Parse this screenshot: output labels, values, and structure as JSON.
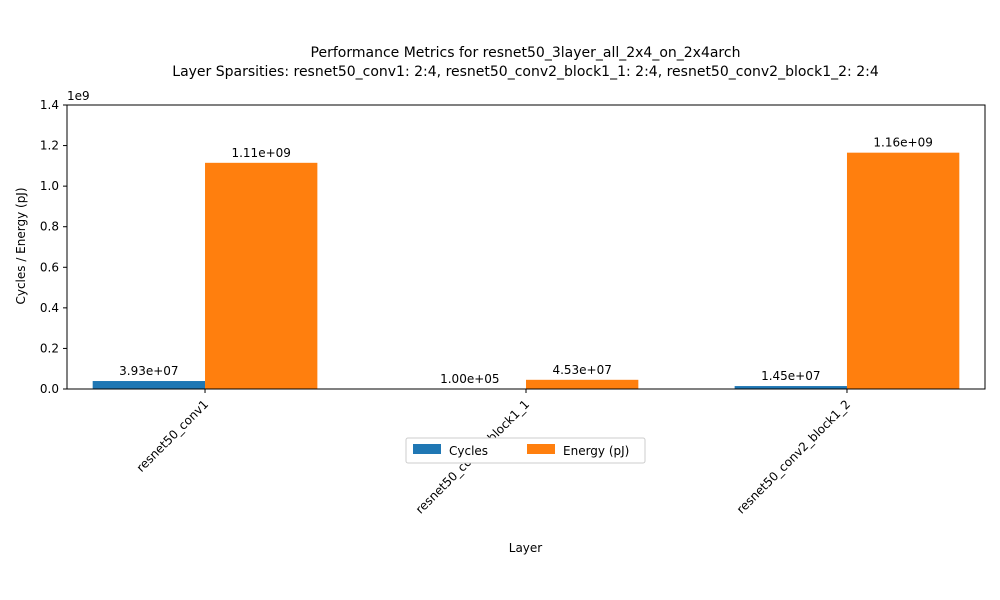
{
  "chart_data": {
    "type": "bar",
    "title": "Performance Metrics for resnet50_3layer_all_2x4_on_2x4arch",
    "subtitle": "Layer Sparsities: resnet50_conv1: 2:4, resnet50_conv2_block1_1: 2:4, resnet50_conv2_block1_2: 2:4",
    "xlabel": "Layer",
    "ylabel": "Cycles / Energy (pJ)",
    "offset_label": "1e9",
    "ylim": [
      0,
      1.4
    ],
    "yticks": [
      "0.0",
      "0.2",
      "0.4",
      "0.6",
      "0.8",
      "1.0",
      "1.2",
      "1.4"
    ],
    "categories": [
      "resnet50_conv1",
      "resnet50_conv2_block1_1",
      "resnet50_conv2_block1_2"
    ],
    "series": [
      {
        "name": "Cycles",
        "color": "#1f77b4",
        "values": [
          39300000,
          100000,
          14500000
        ],
        "labels": [
          "3.93e+07",
          "1.00e+05",
          "1.45e+07"
        ]
      },
      {
        "name": "Energy (pJ)",
        "color": "#ff7f0e",
        "values": [
          1115000000,
          45300000,
          1165000000
        ],
        "labels": [
          "1.11e+09",
          "4.53e+07",
          "1.16e+09"
        ]
      }
    ],
    "grid": false,
    "legend_position": "below-center"
  }
}
